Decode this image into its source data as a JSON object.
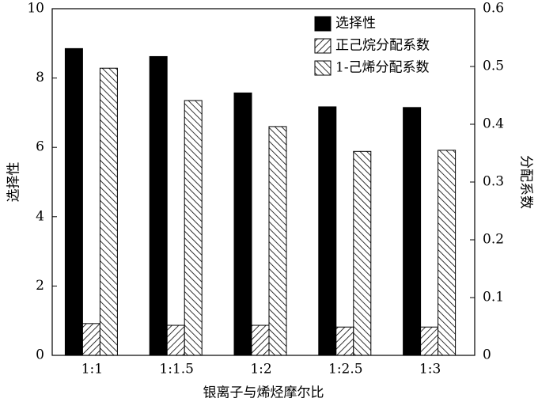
{
  "chart_data": {
    "type": "bar",
    "x_label": "银离子与烯烃摩尔比",
    "y_label": "选择性",
    "y2_label": "分配系数",
    "categories": [
      "1:1",
      "1:1.5",
      "1:2",
      "1:2.5",
      "1:3"
    ],
    "series": [
      {
        "name": "选择性",
        "color": "#000000",
        "pattern": "solid",
        "values": [
          8.85,
          8.62,
          7.57,
          7.17,
          7.15
        ]
      },
      {
        "name": "正己烷分配系数",
        "color": "#000000",
        "pattern": "forward",
        "axis": "y2",
        "values": [
          0.055,
          0.052,
          0.052,
          0.049,
          0.049
        ]
      },
      {
        "name": "1-己烯分配系数",
        "color": "#000000",
        "pattern": "backward",
        "axis": "y2",
        "values": [
          0.497,
          0.441,
          0.396,
          0.353,
          0.355
        ]
      }
    ],
    "ylim": [
      0,
      10
    ],
    "yticks": [
      0,
      2,
      4,
      6,
      8,
      10
    ],
    "y2lim": [
      0,
      0.6
    ],
    "y2ticks": [
      0,
      0.1,
      0.2,
      0.3,
      0.4,
      0.5,
      0.6
    ],
    "legend": "top-right"
  }
}
